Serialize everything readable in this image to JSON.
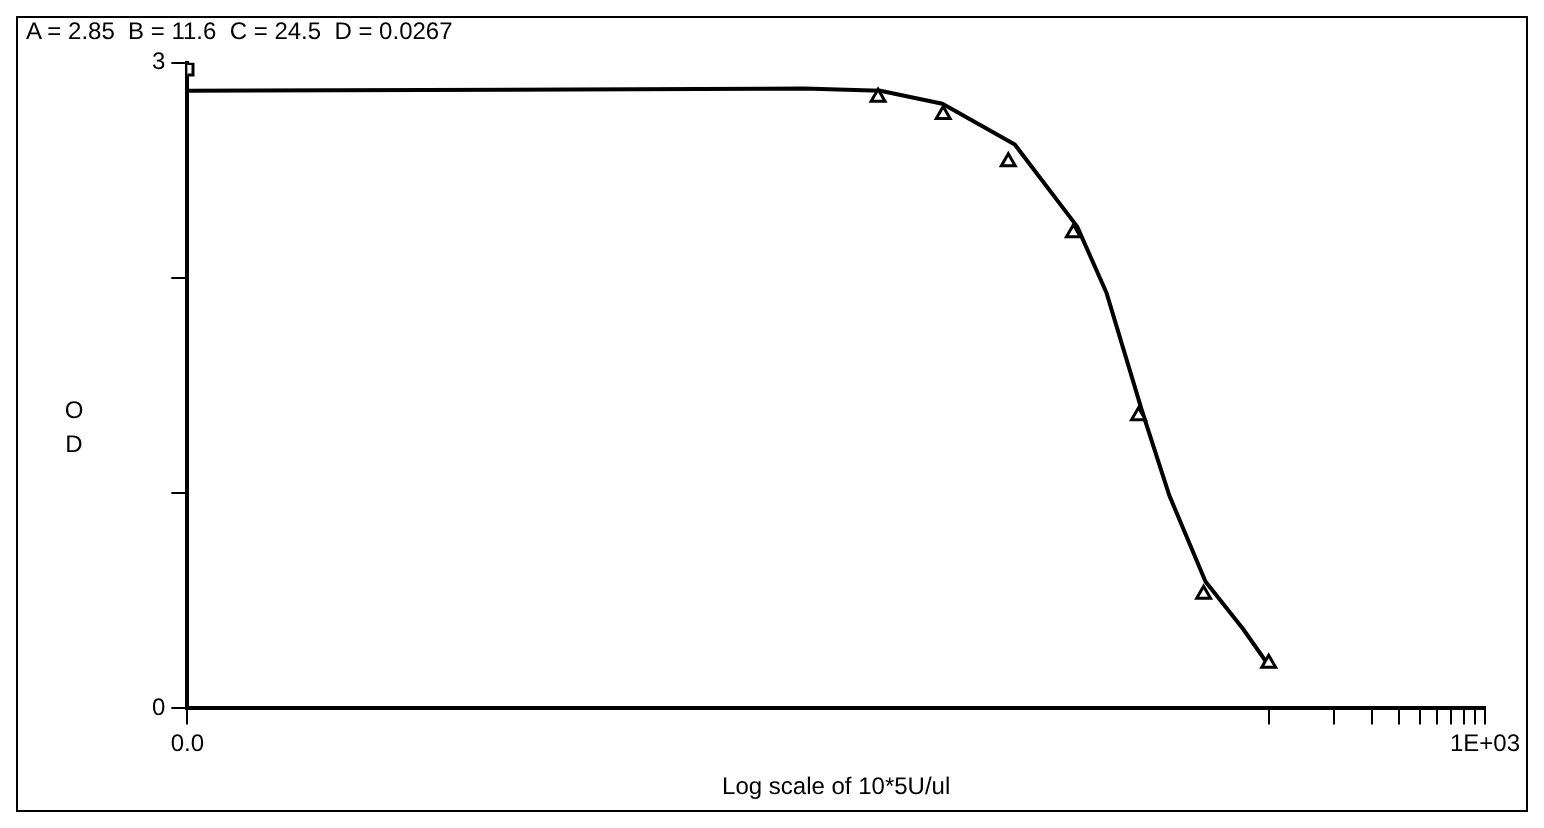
{
  "chart_data": {
    "type": "scatter",
    "title": "A = 2.85  B = 11.6  C = 24.5  D = 0.0267",
    "xlabel": "Log scale of 10*5U/ul",
    "ylabel": "OD",
    "log": "x",
    "grid": false,
    "legend": false,
    "xlim": [
      0.001,
      1000
    ],
    "xticks": [
      {
        "value": 0.001,
        "label": "0.0"
      },
      {
        "value": 100,
        "label": null
      },
      {
        "value": 200,
        "label": null
      },
      {
        "value": 300,
        "label": null
      },
      {
        "value": 400,
        "label": null
      },
      {
        "value": 500,
        "label": null
      },
      {
        "value": 600,
        "label": null
      },
      {
        "value": 700,
        "label": null
      },
      {
        "value": 800,
        "label": null
      },
      {
        "value": 900,
        "label": null
      },
      {
        "value": 1000,
        "label": "1E+03"
      }
    ],
    "ylim": [
      0,
      3
    ],
    "yticks": [
      0,
      {
        "value": 1,
        "label": null
      },
      {
        "value": 2,
        "label": null
      },
      3
    ],
    "series": [
      {
        "marker": "triangle",
        "color": "#000000",
        "x": [
          1.5625,
          3.125,
          6.25,
          12.5,
          25,
          50,
          100
        ],
        "values": [
          2.84,
          2.76,
          2.54,
          2.21,
          1.36,
          0.53,
          0.21
        ]
      },
      {
        "marker": "square",
        "color": "#000000",
        "x": [
          0.001
        ],
        "values": [
          2.97
        ]
      },
      {
        "type": "line",
        "marker": "none",
        "line_style": "solid",
        "color": "#000000",
        "x": [
          0.001,
          0.71,
          1.6,
          3.1,
          6.7,
          13,
          17.8,
          26,
          34.7,
          51,
          76,
          100
        ],
        "values": [
          2.87,
          2.88,
          2.87,
          2.81,
          2.62,
          2.24,
          1.93,
          1.38,
          0.99,
          0.59,
          0.37,
          0.2
        ]
      }
    ]
  }
}
